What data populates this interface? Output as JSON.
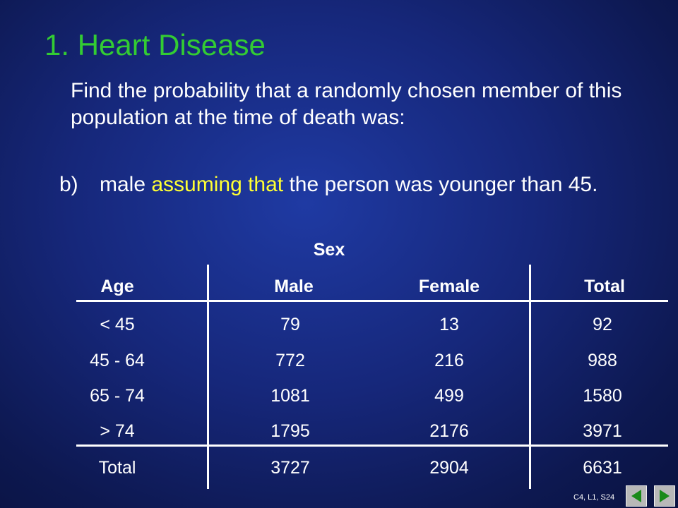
{
  "title": "1.  Heart Disease",
  "question": "Find the probability that a randomly chosen member of this population at the time of death was:",
  "item": {
    "marker": "b)",
    "text_pre": "male ",
    "text_highlight": "assuming that",
    "text_post": " the person was younger than 45."
  },
  "table": {
    "group_header": "Sex",
    "columns": [
      "Age",
      "Male",
      "Female",
      "Total"
    ],
    "rows": [
      [
        "< 45",
        "79",
        "13",
        "92"
      ],
      [
        "45 - 64",
        "772",
        "216",
        "988"
      ],
      [
        "65 - 74",
        "1081",
        "499",
        "1580"
      ],
      [
        "> 74",
        "1795",
        "2176",
        "3971"
      ]
    ],
    "total_row": [
      "Total",
      "3727",
      "2904",
      "6631"
    ]
  },
  "footer": {
    "slide_ref": "C4, L1, S24",
    "prev_icon": "triangle-left-icon",
    "next_icon": "triangle-right-icon"
  },
  "colors": {
    "background": "#16277a",
    "title": "#33cc33",
    "highlight": "#ffff33",
    "text": "#ffffff",
    "nav_arrow": "#1a8a1a"
  }
}
